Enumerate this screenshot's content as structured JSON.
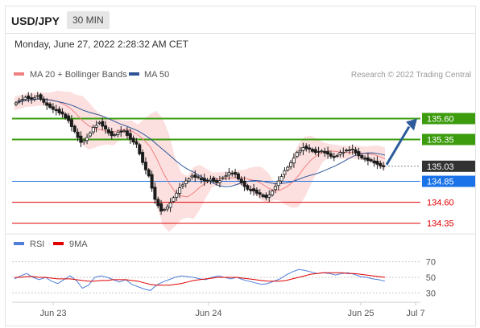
{
  "header": {
    "symbol": "USD/JPY",
    "timeframe": "30 MIN"
  },
  "timestamp": "Monday, June 27, 2022 2:28:32 AM CET",
  "legend": [
    {
      "label": "MA 20 + Bollinger Bands",
      "color": "#f08080"
    },
    {
      "label": "MA 50",
      "color": "#2f5597"
    }
  ],
  "credit": "Research © 2022 Trading Central",
  "rsi_legend": [
    {
      "label": "RSI",
      "color": "#4f7fd9"
    },
    {
      "label": "9MA",
      "color": "#e00000"
    }
  ],
  "chart_data": {
    "type": "candlestick",
    "x_ticks": [
      "Jun 23",
      "Jun 24",
      "Jun 25",
      "Jul 7"
    ],
    "y_range": [
      134.25,
      135.96
    ],
    "levels": [
      {
        "value": 135.6,
        "label": "135.60",
        "kind": "resistance",
        "color": "#3d9c0e"
      },
      {
        "value": 135.35,
        "label": "135.35",
        "kind": "resistance",
        "color": "#3d9c0e"
      },
      {
        "value": 135.03,
        "label": "135.03",
        "kind": "last-price",
        "color": "#333333"
      },
      {
        "value": 134.85,
        "label": "134.85",
        "kind": "pivot",
        "color": "#1a73e8"
      },
      {
        "value": 134.6,
        "label": "134.60",
        "kind": "support",
        "color": "#e00000"
      },
      {
        "value": 134.35,
        "label": "134.35",
        "kind": "support",
        "color": "#e00000"
      }
    ],
    "arrow": {
      "from": 135.03,
      "to": 135.6,
      "direction": "up"
    },
    "price_path": [
      135.78,
      135.82,
      135.86,
      135.84,
      135.88,
      135.8,
      135.74,
      135.7,
      135.66,
      135.58,
      135.45,
      135.32,
      135.38,
      135.5,
      135.56,
      135.48,
      135.4,
      135.44,
      135.46,
      135.36,
      135.3,
      135.08,
      134.92,
      134.64,
      134.5,
      134.55,
      134.66,
      134.78,
      134.86,
      134.92,
      134.9,
      134.86,
      134.88,
      134.84,
      134.9,
      134.96,
      134.94,
      134.84,
      134.76,
      134.74,
      134.7,
      134.66,
      134.74,
      134.86,
      134.98,
      135.08,
      135.2,
      135.26,
      135.24,
      135.2,
      135.22,
      135.18,
      135.14,
      135.2,
      135.22,
      135.24,
      135.16,
      135.12,
      135.1,
      135.06,
      135.03
    ],
    "rsi": {
      "levels": [
        70,
        50,
        30
      ],
      "range": [
        20,
        80
      ],
      "rsi": [
        48,
        52,
        55,
        50,
        47,
        50,
        45,
        42,
        47,
        52,
        46,
        36,
        40,
        50,
        52,
        50,
        47,
        44,
        47,
        41,
        38,
        35,
        33,
        40,
        44,
        47,
        50,
        52,
        51,
        50,
        48,
        47,
        50,
        52,
        50,
        48,
        50,
        47,
        45,
        43,
        41,
        42,
        45,
        48,
        53,
        57,
        60,
        59,
        57,
        55,
        56,
        55,
        53,
        55,
        56,
        54,
        51,
        50,
        48,
        47,
        45
      ],
      "ma9": [
        50,
        50,
        51,
        51,
        50,
        50,
        49,
        48,
        48,
        48,
        47,
        46,
        45,
        45,
        46,
        46,
        47,
        47,
        47,
        46,
        45,
        43,
        41,
        40,
        40,
        40,
        41,
        42,
        44,
        46,
        47,
        48,
        49,
        50,
        50,
        50,
        50,
        49,
        48,
        47,
        46,
        45,
        45,
        45,
        46,
        48,
        50,
        52,
        54,
        55,
        56,
        56,
        56,
        56,
        55,
        55,
        54,
        53,
        52,
        51,
        50
      ]
    }
  }
}
